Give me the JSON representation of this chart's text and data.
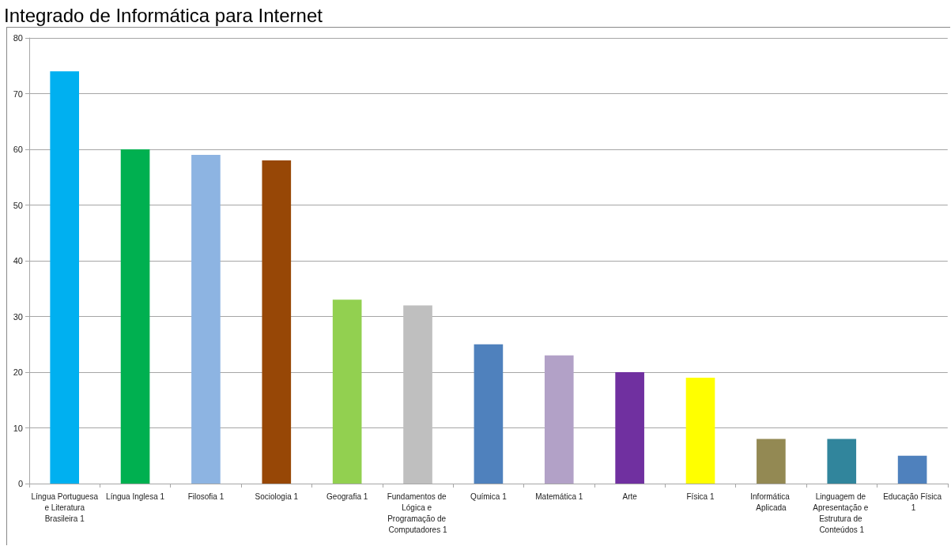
{
  "chart_data": {
    "type": "bar",
    "title": "Integrado de Informática para Internet",
    "categories": [
      "Língua Portuguesa e Literatura Brasileira 1",
      "Língua Inglesa 1",
      "Filosofia 1",
      "Sociologia 1",
      "Geografia 1",
      "Fundamentos de Lógica e Programação de Computadores 1",
      "Química 1",
      "Matemática 1",
      "Arte",
      "Física 1",
      "Informática Aplicada",
      "Linguagem de Apresentação e Estrutura de Conteúdos 1",
      "Educação Física 1"
    ],
    "values": [
      74,
      60,
      59,
      58,
      33,
      32,
      25,
      23,
      20,
      19,
      8,
      8,
      5
    ],
    "colors": [
      "#00b0f0",
      "#00b050",
      "#8db4e2",
      "#974706",
      "#92d050",
      "#bfbfbf",
      "#4f81bd",
      "#b2a1c7",
      "#7030a0",
      "#ffff00",
      "#938953",
      "#31859c",
      "#4f81bd"
    ],
    "ylim": [
      0,
      80
    ],
    "yticks": [
      0,
      10,
      20,
      30,
      40,
      50,
      60,
      70,
      80
    ],
    "grid": "y"
  }
}
